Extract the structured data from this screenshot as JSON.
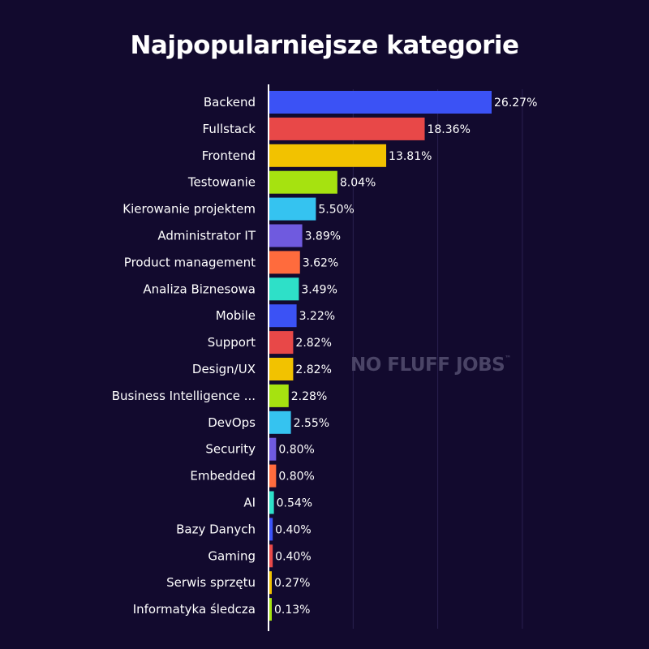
{
  "chart_data": {
    "type": "bar",
    "orientation": "horizontal",
    "title": "Najpopularniejsze kategorie",
    "xlabel": "",
    "ylabel": "",
    "xlim": [
      0,
      30
    ],
    "grid": true,
    "categories": [
      "Backend",
      "Fullstack",
      "Frontend",
      "Testowanie",
      "Kierowanie projektem",
      "Administrator IT",
      "Product management",
      "Analiza Biznesowa",
      "Mobile",
      "Support",
      "Design/UX",
      "Business Intelligence ...",
      "DevOps",
      "Security",
      "Embedded",
      "AI",
      "Bazy Danych",
      "Gaming",
      "Serwis sprzętu",
      "Informatyka śledcza"
    ],
    "values": [
      26.27,
      18.36,
      13.81,
      8.04,
      5.5,
      3.89,
      3.62,
      3.49,
      3.22,
      2.82,
      2.82,
      2.28,
      2.55,
      0.8,
      0.8,
      0.54,
      0.4,
      0.4,
      0.27,
      0.13
    ],
    "value_labels": [
      "26.27%",
      "18.36%",
      "13.81%",
      "8.04%",
      "5.50%",
      "3.89%",
      "3.62%",
      "3.49%",
      "3.22%",
      "2.82%",
      "2.82%",
      "2.28%",
      "2.55%",
      "0.80%",
      "0.80%",
      "0.54%",
      "0.40%",
      "0.40%",
      "0.27%",
      "0.13%"
    ],
    "colors": [
      "#3b52f5",
      "#e84848",
      "#f2c200",
      "#a6e210",
      "#35c3f0",
      "#6f5adf",
      "#ff6b3d",
      "#2ee0c8"
    ]
  },
  "watermark": {
    "text": "NO FLUFF JOBS",
    "tm": "™"
  }
}
